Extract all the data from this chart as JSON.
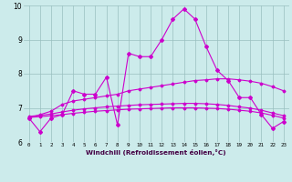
{
  "xlabel": "Windchill (Refroidissement éolien,°C)",
  "x": [
    0,
    1,
    2,
    3,
    4,
    5,
    6,
    7,
    8,
    9,
    10,
    11,
    12,
    13,
    14,
    15,
    16,
    17,
    18,
    19,
    20,
    21,
    22,
    23
  ],
  "y_main": [
    6.7,
    6.3,
    6.7,
    6.8,
    7.5,
    7.4,
    7.4,
    7.9,
    6.5,
    8.6,
    8.5,
    8.5,
    9.0,
    9.6,
    9.9,
    9.6,
    8.8,
    8.1,
    7.8,
    7.3,
    7.3,
    6.8,
    6.4,
    6.6
  ],
  "y_trend_upper": [
    6.7,
    6.8,
    6.9,
    7.1,
    7.2,
    7.25,
    7.3,
    7.35,
    7.4,
    7.5,
    7.55,
    7.6,
    7.65,
    7.7,
    7.75,
    7.8,
    7.82,
    7.85,
    7.85,
    7.82,
    7.78,
    7.72,
    7.62,
    7.5
  ],
  "y_trend_mid": [
    6.75,
    6.78,
    6.82,
    6.88,
    6.93,
    6.97,
    7.0,
    7.03,
    7.05,
    7.07,
    7.09,
    7.1,
    7.11,
    7.12,
    7.13,
    7.13,
    7.12,
    7.1,
    7.07,
    7.03,
    6.99,
    6.93,
    6.85,
    6.77
  ],
  "y_trend_lower": [
    6.72,
    6.74,
    6.77,
    6.8,
    6.84,
    6.87,
    6.9,
    6.92,
    6.94,
    6.96,
    6.97,
    6.98,
    6.99,
    7.0,
    7.0,
    7.0,
    6.99,
    6.98,
    6.96,
    6.93,
    6.9,
    6.85,
    6.78,
    6.7
  ],
  "ylim": [
    6.0,
    10.0
  ],
  "xlim_min": -0.5,
  "xlim_max": 23.5,
  "yticks": [
    6,
    7,
    8,
    9,
    10
  ],
  "xticks": [
    0,
    1,
    2,
    3,
    4,
    5,
    6,
    7,
    8,
    9,
    10,
    11,
    12,
    13,
    14,
    15,
    16,
    17,
    18,
    19,
    20,
    21,
    22,
    23
  ],
  "line_color": "#cc00cc",
  "bg_color": "#ccebeb",
  "grid_color": "#99bfbf"
}
